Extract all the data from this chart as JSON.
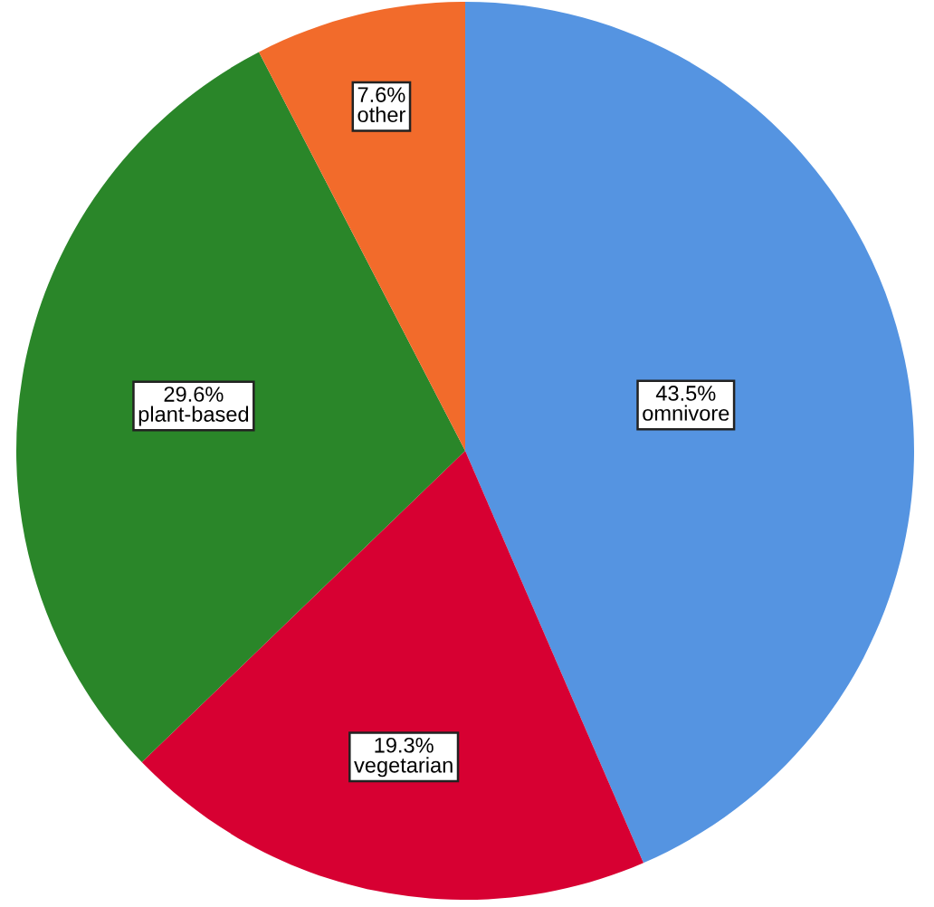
{
  "chart_data": {
    "type": "pie",
    "categories": [
      "omnivore",
      "vegetarian",
      "plant-based",
      "other"
    ],
    "values": [
      43.5,
      19.3,
      29.6,
      7.6
    ],
    "colors": [
      "#5594e1",
      "#d70032",
      "#2a8629",
      "#f26b2b"
    ],
    "value_labels": [
      "43.5%",
      "19.3%",
      "29.6%",
      "7.6%"
    ]
  }
}
